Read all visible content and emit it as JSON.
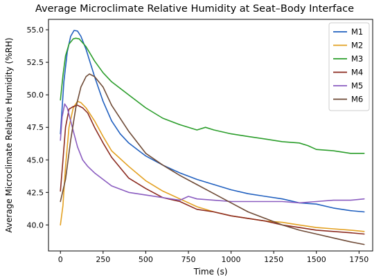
{
  "chart_data": {
    "type": "line",
    "title": "Average Microclimate Relative Humidity at Seat–Body Interface",
    "xlabel": "Time (s)",
    "ylabel": "Average Microclimate Relative Humidity (%RH)",
    "xlim": [
      -70,
      1830
    ],
    "ylim": [
      38.0,
      55.8
    ],
    "xticks": [
      0,
      250,
      500,
      750,
      1000,
      1250,
      1500,
      1750
    ],
    "yticks": [
      40.0,
      42.5,
      45.0,
      47.5,
      50.0,
      52.5,
      55.0
    ],
    "grid": false,
    "legend_position": "top-right",
    "series": [
      {
        "name": "M1",
        "color": "#1f5fbf",
        "x": [
          0,
          20,
          40,
          60,
          80,
          100,
          120,
          150,
          200,
          250,
          300,
          350,
          400,
          450,
          500,
          600,
          700,
          800,
          900,
          1000,
          1100,
          1200,
          1300,
          1400,
          1500,
          1600,
          1700,
          1780
        ],
        "y": [
          47.0,
          51.0,
          53.3,
          54.5,
          54.95,
          54.9,
          54.5,
          53.5,
          51.4,
          49.5,
          48.0,
          47.0,
          46.3,
          45.8,
          45.3,
          44.6,
          44.0,
          43.5,
          43.1,
          42.7,
          42.4,
          42.2,
          42.0,
          41.7,
          41.6,
          41.3,
          41.1,
          41.0
        ]
      },
      {
        "name": "M2",
        "color": "#e3a020",
        "x": [
          0,
          15,
          30,
          50,
          75,
          100,
          120,
          150,
          200,
          250,
          300,
          400,
          500,
          600,
          700,
          800,
          900,
          1000,
          1100,
          1200,
          1300,
          1400,
          1500,
          1600,
          1700,
          1780
        ],
        "y": [
          40.0,
          41.5,
          44.5,
          47.5,
          49.0,
          49.5,
          49.4,
          49.0,
          48.0,
          46.8,
          45.7,
          44.5,
          43.4,
          42.6,
          42.0,
          41.4,
          41.0,
          40.7,
          40.5,
          40.3,
          40.2,
          40.0,
          39.8,
          39.7,
          39.6,
          39.5
        ]
      },
      {
        "name": "M3",
        "color": "#2a9d2a",
        "x": [
          0,
          15,
          30,
          50,
          75,
          90,
          110,
          150,
          200,
          250,
          300,
          400,
          500,
          600,
          700,
          800,
          850,
          900,
          1000,
          1100,
          1200,
          1300,
          1400,
          1450,
          1500,
          1600,
          1700,
          1780
        ],
        "y": [
          49.6,
          51.5,
          53.0,
          53.9,
          54.3,
          54.35,
          54.3,
          53.7,
          52.6,
          51.7,
          51.0,
          50.0,
          49.0,
          48.2,
          47.7,
          47.3,
          47.5,
          47.3,
          47.0,
          46.8,
          46.6,
          46.4,
          46.3,
          46.1,
          45.8,
          45.7,
          45.5,
          45.5
        ]
      },
      {
        "name": "M4",
        "color": "#8b2a1f",
        "x": [
          0,
          15,
          30,
          50,
          75,
          100,
          130,
          160,
          200,
          250,
          300,
          400,
          500,
          600,
          700,
          800,
          900,
          1000,
          1100,
          1200,
          1300,
          1400,
          1500,
          1600,
          1700,
          1780
        ],
        "y": [
          42.6,
          45.0,
          47.5,
          48.9,
          49.1,
          49.2,
          49.0,
          48.6,
          47.5,
          46.3,
          45.2,
          43.6,
          42.8,
          42.1,
          41.8,
          41.2,
          41.0,
          40.7,
          40.5,
          40.3,
          40.0,
          39.8,
          39.6,
          39.5,
          39.4,
          39.3
        ]
      },
      {
        "name": "M5",
        "color": "#8a5cc0",
        "x": [
          0,
          10,
          25,
          40,
          60,
          80,
          100,
          130,
          160,
          200,
          250,
          300,
          400,
          500,
          600,
          700,
          750,
          800,
          900,
          1000,
          1100,
          1200,
          1300,
          1400,
          1500,
          1600,
          1700,
          1780
        ],
        "y": [
          46.5,
          48.3,
          49.3,
          49.0,
          48.0,
          47.0,
          46.0,
          45.0,
          44.5,
          44.0,
          43.5,
          43.0,
          42.5,
          42.3,
          42.1,
          41.9,
          42.2,
          42.0,
          41.9,
          41.8,
          41.8,
          41.8,
          41.8,
          41.7,
          41.8,
          41.9,
          41.9,
          42.0
        ]
      },
      {
        "name": "M6",
        "color": "#6e4a36",
        "x": [
          0,
          30,
          60,
          90,
          120,
          150,
          170,
          200,
          250,
          300,
          400,
          500,
          600,
          700,
          800,
          900,
          1000,
          1100,
          1200,
          1300,
          1400,
          1500,
          1600,
          1700,
          1780
        ],
        "y": [
          41.8,
          43.5,
          46.5,
          49.0,
          50.6,
          51.4,
          51.6,
          51.4,
          50.6,
          49.2,
          47.2,
          45.5,
          44.6,
          43.8,
          43.1,
          42.4,
          41.7,
          41.0,
          40.5,
          40.0,
          39.6,
          39.3,
          39.0,
          38.7,
          38.5
        ]
      }
    ]
  }
}
